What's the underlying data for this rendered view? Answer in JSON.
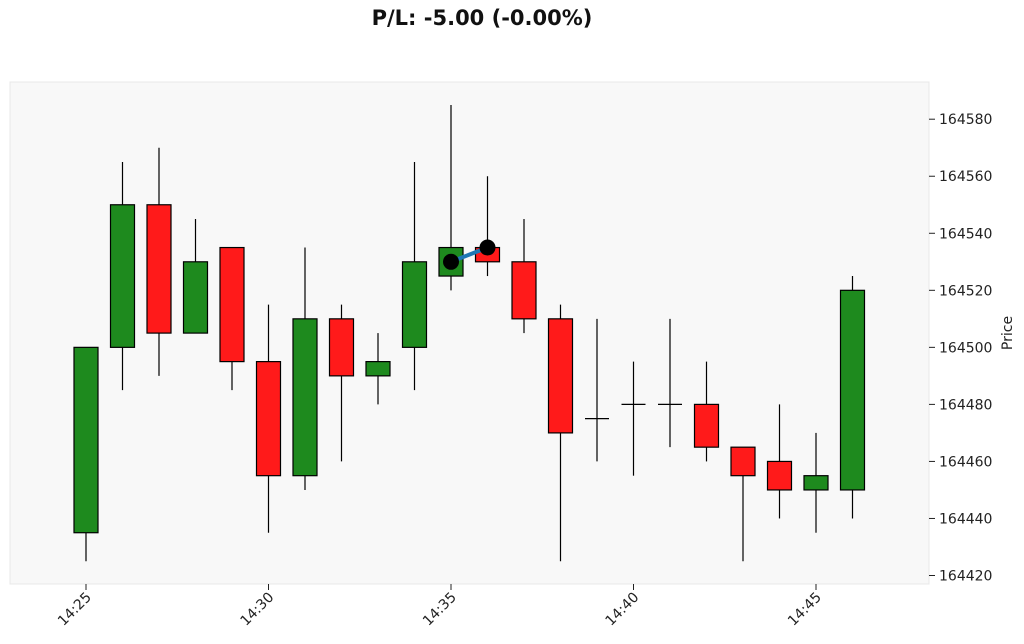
{
  "title": "P/L: -5.00 (-0.00%)",
  "chart_data": {
    "type": "candlestick",
    "title": "P/L: -5.00 (-0.00%)",
    "xlabel": "",
    "ylabel": "Price",
    "ylim": [
      164415,
      164590
    ],
    "y_ticks": [
      164420,
      164440,
      164460,
      164480,
      164500,
      164520,
      164540,
      164560,
      164580
    ],
    "x_tick_labels": [
      "14:25",
      "14:30",
      "14:35",
      "14:40",
      "14:45"
    ],
    "x_tick_minutes": [
      0,
      5,
      10,
      15,
      20
    ],
    "grid": false,
    "colors": {
      "up": "#1e8a1e",
      "down": "#ff1a1a",
      "trade_line": "#1f77b4",
      "trade_marker": "#000000",
      "plot_bg": "#f8f8f8"
    },
    "candles": [
      {
        "time": "14:25",
        "open": 164435,
        "high": 164500,
        "low": 164425,
        "close": 164500
      },
      {
        "time": "14:26",
        "open": 164500,
        "high": 164565,
        "low": 164485,
        "close": 164550
      },
      {
        "time": "14:27",
        "open": 164550,
        "high": 164570,
        "low": 164490,
        "close": 164505
      },
      {
        "time": "14:28",
        "open": 164505,
        "high": 164545,
        "low": 164505,
        "close": 164530
      },
      {
        "time": "14:29",
        "open": 164535,
        "high": 164535,
        "low": 164485,
        "close": 164495
      },
      {
        "time": "14:30",
        "open": 164495,
        "high": 164515,
        "low": 164435,
        "close": 164455
      },
      {
        "time": "14:31",
        "open": 164455,
        "high": 164535,
        "low": 164450,
        "close": 164510
      },
      {
        "time": "14:32",
        "open": 164510,
        "high": 164515,
        "low": 164460,
        "close": 164490
      },
      {
        "time": "14:33",
        "open": 164490,
        "high": 164505,
        "low": 164480,
        "close": 164495
      },
      {
        "time": "14:34",
        "open": 164500,
        "high": 164565,
        "low": 164485,
        "close": 164530
      },
      {
        "time": "14:35",
        "open": 164525,
        "high": 164585,
        "low": 164520,
        "close": 164535
      },
      {
        "time": "14:36",
        "open": 164535,
        "high": 164560,
        "low": 164525,
        "close": 164530
      },
      {
        "time": "14:37",
        "open": 164530,
        "high": 164545,
        "low": 164505,
        "close": 164510
      },
      {
        "time": "14:38",
        "open": 164510,
        "high": 164515,
        "low": 164425,
        "close": 164470
      },
      {
        "time": "14:39",
        "open": 164475,
        "high": 164510,
        "low": 164460,
        "close": 164475
      },
      {
        "time": "14:40",
        "open": 164480,
        "high": 164495,
        "low": 164455,
        "close": 164480
      },
      {
        "time": "14:41",
        "open": 164480,
        "high": 164510,
        "low": 164465,
        "close": 164480
      },
      {
        "time": "14:42",
        "open": 164480,
        "high": 164495,
        "low": 164460,
        "close": 164465
      },
      {
        "time": "14:43",
        "open": 164465,
        "high": 164465,
        "low": 164425,
        "close": 164455
      },
      {
        "time": "14:44",
        "open": 164460,
        "high": 164480,
        "low": 164440,
        "close": 164450
      },
      {
        "time": "14:45",
        "open": 164450,
        "high": 164470,
        "low": 164435,
        "close": 164455
      },
      {
        "time": "14:46",
        "open": 164450,
        "high": 164525,
        "low": 164440,
        "close": 164520
      }
    ],
    "trade": {
      "entry": {
        "time": "14:35",
        "price": 164530
      },
      "exit": {
        "time": "14:36",
        "price": 164535
      }
    }
  }
}
